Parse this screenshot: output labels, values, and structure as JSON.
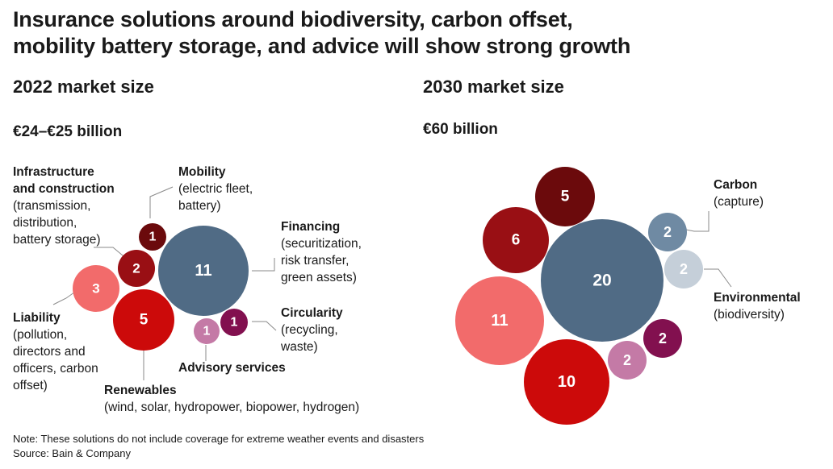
{
  "title_line1": "Insurance solutions around biodiversity, carbon offset,",
  "title_line2": "mobility battery storage, and advice will show strong growth",
  "notes": {
    "note": "Note: These solutions do not include coverage for extreme weather events and disasters",
    "source": "Source: Bain & Company"
  },
  "labels": {
    "infrastructure": {
      "head1": "Infrastructure",
      "head2": "and construction",
      "sub1": "(transmission,",
      "sub2": "distribution,",
      "sub3": "battery storage)"
    },
    "mobility": {
      "head": "Mobility",
      "sub1": "(electric fleet,",
      "sub2": "battery)"
    },
    "financing": {
      "head": "Financing",
      "sub1": "(securitization,",
      "sub2": "risk transfer,",
      "sub3": "green assets)"
    },
    "circularity": {
      "head": "Circularity",
      "sub1": "(recycling,",
      "sub2": "waste)"
    },
    "advisory": {
      "head": "Advisory services"
    },
    "liability": {
      "head": "Liability",
      "sub1": "(pollution,",
      "sub2": "directors and",
      "sub3": "officers, carbon",
      "sub4": "offset)"
    },
    "renewables": {
      "head": "Renewables",
      "sub1": "(wind, solar, hydropower, biopower, hydrogen)"
    },
    "carbon": {
      "head": "Carbon",
      "sub1": "(capture)"
    },
    "environmental": {
      "head": "Environmental",
      "sub1": "(biodiversity)"
    }
  },
  "colors": {
    "financing": "#506b85",
    "renewables": "#cc0a0a",
    "liability": "#f26b6b",
    "infrastructure": "#990f14",
    "mobility": "#6b0a0c",
    "circularity": "#82104f",
    "advisory": "#c47aa6",
    "carbon": "#6f8aa3",
    "environmental": "#c5cfd9"
  },
  "chart_data": [
    {
      "type": "bubble",
      "title": "2022 market size",
      "total": "€24–€25 billion",
      "series": [
        {
          "name": "Financing",
          "value": 11
        },
        {
          "name": "Renewables",
          "value": 5
        },
        {
          "name": "Liability",
          "value": 3
        },
        {
          "name": "Infrastructure and construction",
          "value": 2
        },
        {
          "name": "Mobility",
          "value": 1
        },
        {
          "name": "Circularity",
          "value": 1
        },
        {
          "name": "Advisory services",
          "value": 1
        }
      ]
    },
    {
      "type": "bubble",
      "title": "2030 market size",
      "total": "€60 billion",
      "series": [
        {
          "name": "Financing",
          "value": 20
        },
        {
          "name": "Liability",
          "value": 11
        },
        {
          "name": "Renewables",
          "value": 10
        },
        {
          "name": "Infrastructure and construction",
          "value": 6
        },
        {
          "name": "Mobility",
          "value": 5
        },
        {
          "name": "Carbon",
          "value": 2
        },
        {
          "name": "Environmental",
          "value": 2
        },
        {
          "name": "Circularity",
          "value": 2
        },
        {
          "name": "Advisory services",
          "value": 2
        }
      ]
    }
  ]
}
